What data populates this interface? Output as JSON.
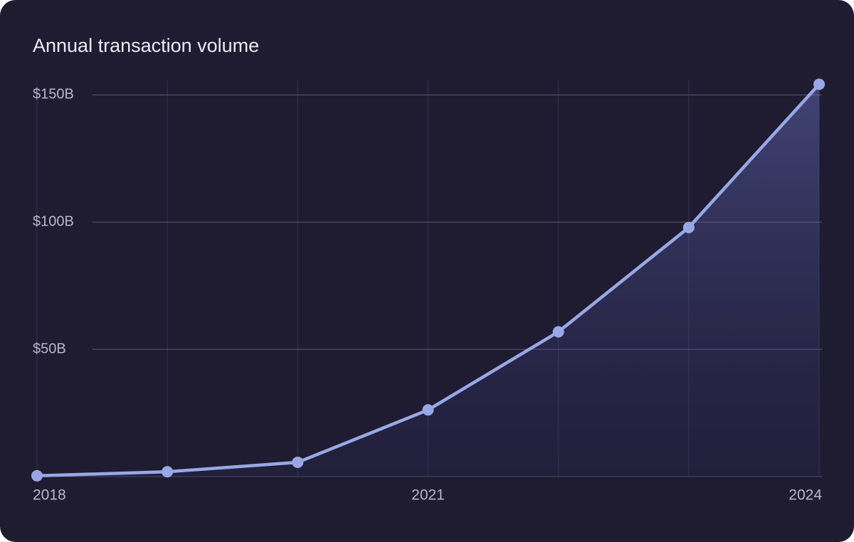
{
  "chart_data": {
    "type": "line",
    "title": "Annual transaction volume",
    "categories": [
      "2018",
      null,
      null,
      "2021",
      null,
      null,
      "2024"
    ],
    "series": [
      {
        "name": "Transaction volume",
        "color": "#98a8e6",
        "values": [
          0.3,
          1.9,
          5.6,
          26.2,
          56.9,
          97.9,
          154.2
        ]
      }
    ],
    "ylim": [
      0,
      156
    ],
    "yticks": [
      {
        "value": 50,
        "label": "$50B"
      },
      {
        "value": 100,
        "label": "$100B"
      },
      {
        "value": 150,
        "label": "$150B"
      }
    ],
    "grid": true,
    "area": true
  }
}
